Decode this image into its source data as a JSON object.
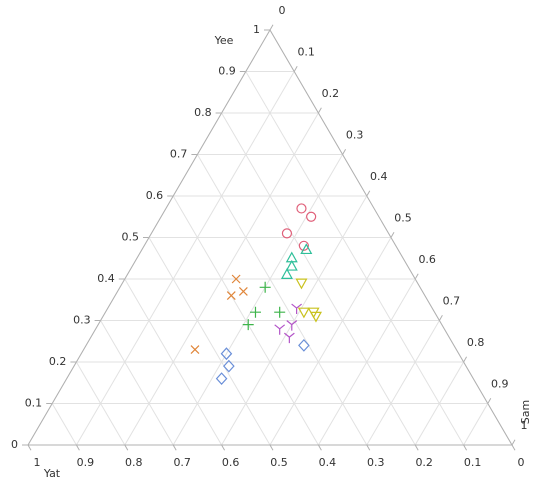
{
  "chart_data": {
    "type": "ternary",
    "grid": true,
    "axes": [
      {
        "label": "Yee",
        "ticks": [
          0,
          0.1,
          0.2,
          0.3,
          0.4,
          0.5,
          0.6,
          0.7,
          0.8,
          0.9,
          1
        ]
      },
      {
        "label": "Sam",
        "ticks": [
          0,
          0.1,
          0.2,
          0.3,
          0.4,
          0.5,
          0.6,
          0.7,
          0.8,
          0.9,
          1
        ]
      },
      {
        "label": "Yat",
        "ticks": [
          0,
          0.1,
          0.2,
          0.3,
          0.4,
          0.5,
          0.6,
          0.7,
          0.8,
          0.9,
          1
        ]
      }
    ],
    "series": [
      {
        "marker": "circle",
        "color": "#e0607a",
        "yee": [
          0.57,
          0.55,
          0.51,
          0.48
        ],
        "sam": [
          0.28,
          0.31,
          0.28,
          0.33
        ],
        "yat": [
          0.15,
          0.14,
          0.21,
          0.19
        ]
      },
      {
        "marker": "triangle",
        "color": "#2fbf9a",
        "yee": [
          0.47,
          0.45,
          0.43,
          0.41
        ],
        "sam": [
          0.34,
          0.32,
          0.33,
          0.33
        ],
        "yat": [
          0.19,
          0.23,
          0.24,
          0.26
        ]
      },
      {
        "marker": "triangle-down",
        "color": "#c9c21e",
        "yee": [
          0.39,
          0.32,
          0.32,
          0.31
        ],
        "sam": [
          0.37,
          0.41,
          0.43,
          0.44
        ],
        "yat": [
          0.24,
          0.27,
          0.25,
          0.25
        ]
      },
      {
        "marker": "y",
        "color": "#b355c8",
        "yee": [
          0.33,
          0.29,
          0.28,
          0.26
        ],
        "sam": [
          0.39,
          0.4,
          0.38,
          0.41
        ],
        "yat": [
          0.28,
          0.31,
          0.34,
          0.33
        ]
      },
      {
        "marker": "diamond",
        "color": "#6a8fd8",
        "yee": [
          0.24,
          0.22,
          0.19,
          0.16
        ],
        "sam": [
          0.45,
          0.3,
          0.32,
          0.32
        ],
        "yat": [
          0.31,
          0.48,
          0.49,
          0.52
        ]
      },
      {
        "marker": "plus",
        "color": "#3db44a",
        "yee": [
          0.38,
          0.32,
          0.32,
          0.29
        ],
        "sam": [
          0.3,
          0.31,
          0.36,
          0.31
        ],
        "yat": [
          0.32,
          0.37,
          0.32,
          0.4
        ]
      },
      {
        "marker": "x",
        "color": "#e0863a",
        "yee": [
          0.4,
          0.37,
          0.36,
          0.23
        ],
        "sam": [
          0.23,
          0.26,
          0.24,
          0.23
        ],
        "yat": [
          0.37,
          0.37,
          0.4,
          0.54
        ]
      }
    ]
  }
}
